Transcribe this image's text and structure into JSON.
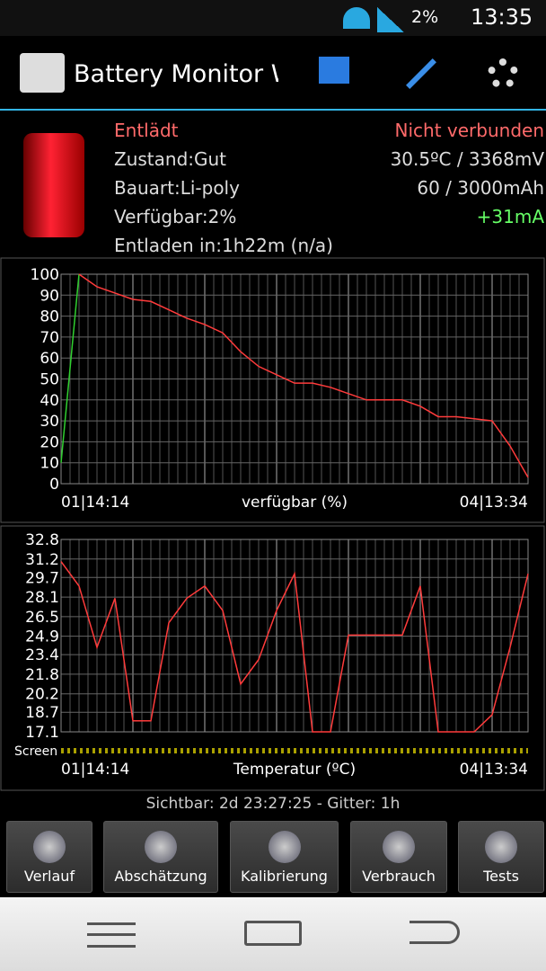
{
  "status_bar": {
    "battery": "2%",
    "time": "13:35"
  },
  "app_bar": {
    "title": "Battery Monitor W"
  },
  "info": {
    "state": "Entlädt",
    "connection": "Nicht verbunden",
    "health": "Zustand:Gut",
    "temp_voltage": "30.5ºC / 3368mV",
    "type": "Bauart:Li-poly",
    "capacity": "60 / 3000mAh",
    "available": "Verfügbar:2%",
    "current": "+31mA",
    "remaining": "Entladen in:1h22m (n/a)"
  },
  "chart_data": [
    {
      "type": "line",
      "xlabel": "verfügbar (%)",
      "xlabels": [
        "01|14:14",
        "04|13:34"
      ],
      "ylim": [
        0,
        100
      ],
      "yticks": [
        0,
        10,
        20,
        30,
        40,
        50,
        60,
        70,
        80,
        90,
        100
      ],
      "grid": true,
      "series": [
        {
          "color": "#30d030",
          "values": [
            10,
            100,
            null,
            null,
            null,
            null,
            null,
            null,
            null,
            null,
            null,
            null,
            null,
            null,
            null,
            null,
            null,
            null,
            null,
            null,
            null,
            null,
            null,
            null,
            null,
            null,
            null
          ]
        },
        {
          "color": "#ff3b3b",
          "values": [
            null,
            100,
            94,
            91,
            88,
            87,
            83,
            79,
            76,
            72,
            63,
            56,
            52,
            48,
            48,
            46,
            43,
            40,
            40,
            40,
            37,
            32,
            32,
            31,
            30,
            18,
            3
          ]
        }
      ]
    },
    {
      "type": "line",
      "xlabel": "Temperatur (ºC)",
      "xlabels": [
        "01|14:14",
        "04|13:34"
      ],
      "screen_label": "Screen",
      "ylim": [
        17.1,
        32.8
      ],
      "yticks": [
        17.1,
        18.7,
        20.2,
        21.8,
        23.4,
        24.9,
        26.5,
        28.1,
        29.7,
        31.2,
        32.8
      ],
      "grid": true,
      "series": [
        {
          "color": "#ff3b3b",
          "values": [
            31,
            29,
            24,
            28,
            18,
            18,
            26,
            28,
            29,
            27,
            21,
            23,
            27,
            30,
            17.1,
            17.1,
            25,
            25,
            25,
            25,
            29,
            17.1,
            17.1,
            17.1,
            18.5,
            24,
            30
          ]
        }
      ]
    }
  ],
  "footer": "Sichtbar: 2d 23:27:25 - Gitter: 1h",
  "buttons": [
    "Verlauf",
    "Abschätzung",
    "Kalibrierung",
    "Verbrauch",
    "Tests"
  ]
}
